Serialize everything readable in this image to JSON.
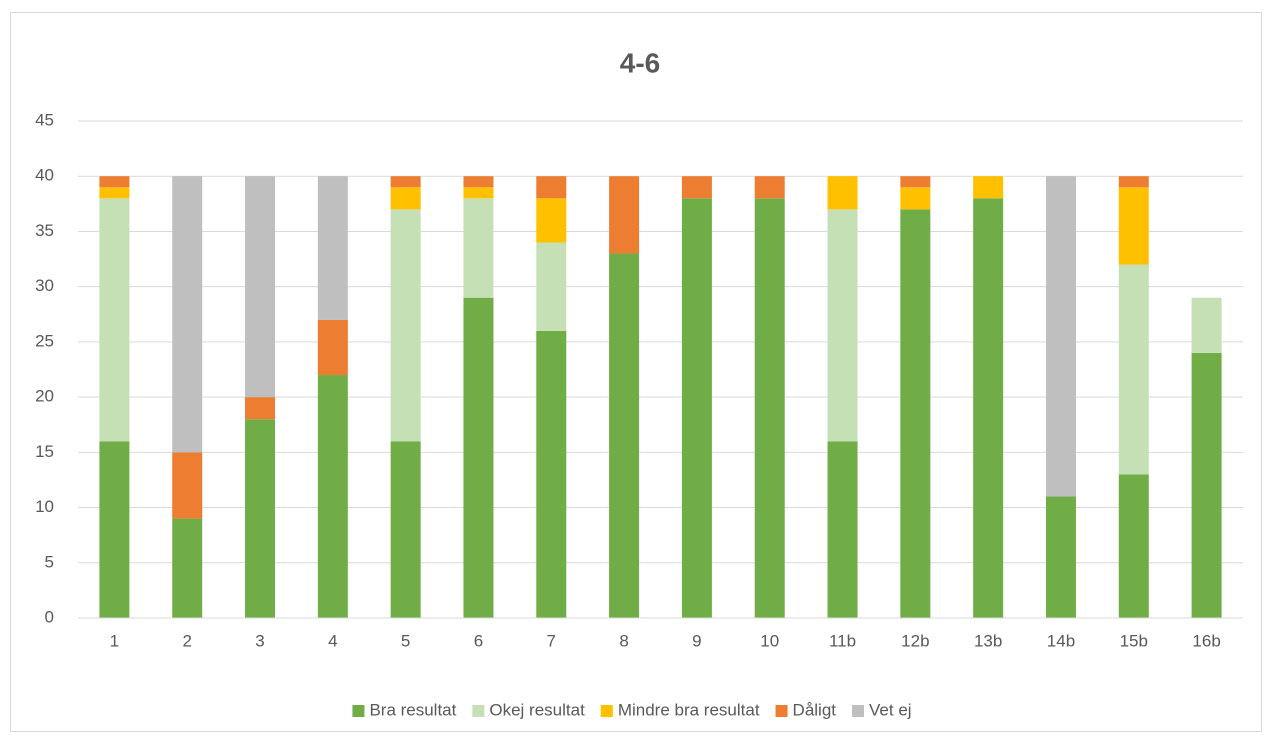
{
  "chart_data": {
    "type": "stacked_bar",
    "title": "4-6",
    "categories": [
      "1",
      "2",
      "3",
      "4",
      "5",
      "6",
      "7",
      "8",
      "9",
      "10",
      "11b",
      "12b",
      "13b",
      "14b",
      "15b",
      "16b"
    ],
    "series": [
      {
        "name": "Bra resultat",
        "color": "#70ad47",
        "values": [
          16,
          9,
          18,
          22,
          16,
          29,
          26,
          33,
          38,
          38,
          16,
          37,
          38,
          11,
          13,
          24
        ]
      },
      {
        "name": "Okej resultat",
        "color": "#c5e0b4",
        "values": [
          22,
          0,
          0,
          0,
          21,
          9,
          8,
          0,
          0,
          0,
          21,
          0,
          0,
          0,
          19,
          5
        ]
      },
      {
        "name": "Mindre bra resultat",
        "color": "#ffc000",
        "values": [
          1,
          0,
          0,
          0,
          2,
          1,
          4,
          0,
          0,
          0,
          3,
          2,
          2,
          0,
          7,
          0
        ]
      },
      {
        "name": "Dåligt",
        "color": "#ed7d31",
        "values": [
          1,
          6,
          2,
          5,
          1,
          1,
          2,
          7,
          2,
          2,
          0,
          1,
          0,
          0,
          1,
          0
        ]
      },
      {
        "name": "Vet ej",
        "color": "#bfbfbf",
        "values": [
          0,
          25,
          20,
          13,
          0,
          0,
          0,
          0,
          0,
          0,
          0,
          0,
          0,
          29,
          0,
          0
        ]
      }
    ],
    "ylim": [
      0,
      45
    ],
    "yticks": [
      0,
      5,
      10,
      15,
      20,
      25,
      30,
      35,
      40,
      45
    ],
    "grid": true,
    "legend": "bottom"
  }
}
